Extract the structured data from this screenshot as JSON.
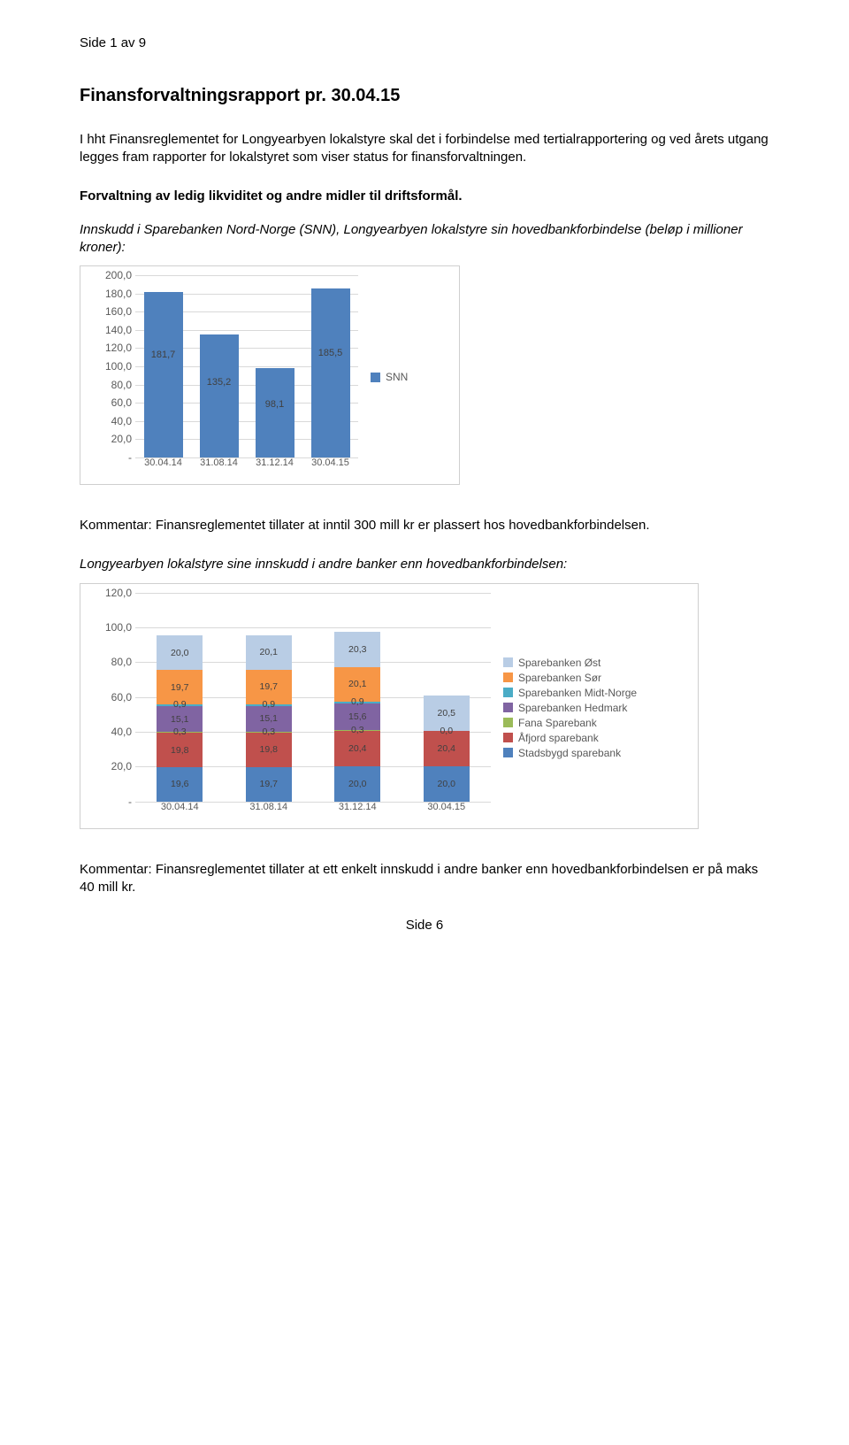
{
  "header": "Side 1 av 9",
  "title": "Finansforvaltningsrapport pr. 30.04.15",
  "intro": "I hht Finansreglementet for Longyearbyen lokalstyre skal det i forbindelse med tertialrapportering og ved årets utgang legges fram rapporter for lokalstyret som viser status for finansforvaltningen.",
  "section1_title": "Forvaltning av ledig likviditet og andre midler til driftsformål.",
  "section1_sub": "Innskudd i Sparebanken Nord-Norge (SNN), Longyearbyen lokalstyre sin hovedbankforbindelse (beløp i millioner kroner):",
  "chart1": {
    "type": "bar",
    "ylim": [
      0,
      200
    ],
    "ytick_step": 20,
    "yticks": [
      "-",
      "20,0",
      "40,0",
      "60,0",
      "80,0",
      "100,0",
      "120,0",
      "140,0",
      "160,0",
      "180,0",
      "200,0"
    ],
    "categories": [
      "30.04.14",
      "31.08.14",
      "31.12.14",
      "30.04.15"
    ],
    "values": [
      181.7,
      135.2,
      98.1,
      185.5
    ],
    "value_labels": [
      "181,7",
      "135,2",
      "98,1",
      "185,5"
    ],
    "bar_color": "#4f81bd",
    "legend": "SNN",
    "grid_color": "#d9d9d9",
    "label_color": "#595959",
    "value_label_color": "#404040"
  },
  "comment1": "Kommentar: Finansreglementet tillater at inntil 300 mill kr er plassert hos hovedbankforbindelsen.",
  "section2_sub": "Longyearbyen lokalstyre sine innskudd i andre banker enn hovedbankforbindelsen:",
  "chart2": {
    "type": "stacked_bar",
    "ylim": [
      0,
      120
    ],
    "ytick_step": 20,
    "yticks": [
      "-",
      "20,0",
      "40,0",
      "60,0",
      "80,0",
      "100,0",
      "120,0"
    ],
    "categories": [
      "30.04.14",
      "31.08.14",
      "31.12.14",
      "30.04.15"
    ],
    "series": [
      {
        "name": "Stadsbygd sparebank",
        "color": "#4f81bd"
      },
      {
        "name": "Åfjord sparebank",
        "color": "#c0504d"
      },
      {
        "name": "Fana Sparebank",
        "color": "#9bbb59"
      },
      {
        "name": "Sparebanken Hedmark",
        "color": "#8064a2"
      },
      {
        "name": "Sparebanken Midt-Norge",
        "color": "#4bacc6"
      },
      {
        "name": "Sparebanken Sør",
        "color": "#f79646"
      },
      {
        "name": "Sparebanken Øst",
        "color": "#b9cde5"
      }
    ],
    "stacks": [
      [
        {
          "v": 19.6,
          "l": "19,6",
          "c": "#4f81bd"
        },
        {
          "v": 19.8,
          "l": "19,8",
          "c": "#c0504d"
        },
        {
          "v": 0.3,
          "l": "0,3",
          "c": "#9bbb59"
        },
        {
          "v": 15.1,
          "l": "15,1",
          "c": "#8064a2"
        },
        {
          "v": 0.9,
          "l": "0,9",
          "c": "#4bacc6"
        },
        {
          "v": 19.7,
          "l": "19,7",
          "c": "#f79646"
        },
        {
          "v": 20.0,
          "l": "20,0",
          "c": "#b9cde5"
        }
      ],
      [
        {
          "v": 19.7,
          "l": "19,7",
          "c": "#4f81bd"
        },
        {
          "v": 19.8,
          "l": "19,8",
          "c": "#c0504d"
        },
        {
          "v": 0.3,
          "l": "0,3",
          "c": "#9bbb59"
        },
        {
          "v": 15.1,
          "l": "15,1",
          "c": "#8064a2"
        },
        {
          "v": 0.9,
          "l": "0,9",
          "c": "#4bacc6"
        },
        {
          "v": 19.7,
          "l": "19,7",
          "c": "#f79646"
        },
        {
          "v": 20.1,
          "l": "20,1",
          "c": "#b9cde5"
        }
      ],
      [
        {
          "v": 20.0,
          "l": "20,0",
          "c": "#4f81bd"
        },
        {
          "v": 20.4,
          "l": "20,4",
          "c": "#c0504d"
        },
        {
          "v": 0.3,
          "l": "0,3",
          "c": "#9bbb59"
        },
        {
          "v": 15.6,
          "l": "15,6",
          "c": "#8064a2"
        },
        {
          "v": 0.9,
          "l": "0,9",
          "c": "#4bacc6"
        },
        {
          "v": 20.1,
          "l": "20,1",
          "c": "#f79646"
        },
        {
          "v": 20.3,
          "l": "20,3",
          "c": "#b9cde5"
        }
      ],
      [
        {
          "v": 20.0,
          "l": "20,0",
          "c": "#4f81bd"
        },
        {
          "v": 20.4,
          "l": "20,4",
          "c": "#c0504d"
        },
        {
          "v": 0.0,
          "l": "0,0",
          "c": "#9bbb59"
        },
        {
          "v": 0.0,
          "l": "",
          "c": "#8064a2"
        },
        {
          "v": 0.0,
          "l": "",
          "c": "#4bacc6"
        },
        {
          "v": 0.0,
          "l": "",
          "c": "#f79646"
        },
        {
          "v": 20.5,
          "l": "20,5",
          "c": "#b9cde5"
        }
      ]
    ],
    "grid_color": "#d9d9d9",
    "label_color": "#595959"
  },
  "comment2": "Kommentar: Finansreglementet tillater at ett enkelt innskudd i andre banker enn hovedbankforbindelsen er på maks 40 mill kr.",
  "footer": "Side 6"
}
